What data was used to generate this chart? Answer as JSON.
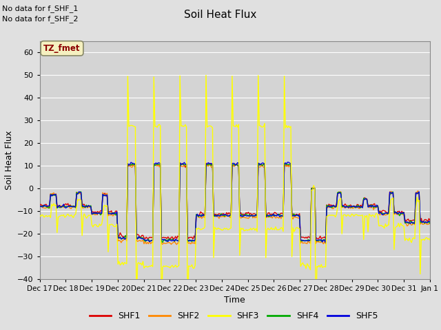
{
  "title": "Soil Heat Flux",
  "xlabel": "Time",
  "ylabel": "Soil Heat Flux",
  "ylim": [
    -40,
    65
  ],
  "yticks": [
    -40,
    -30,
    -20,
    -10,
    0,
    10,
    20,
    30,
    40,
    50,
    60
  ],
  "no_data_text_1": "No data for f_SHF_1",
  "no_data_text_2": "No data for f_SHF_2",
  "tz_label": "TZ_fmet",
  "legend_entries": [
    "SHF1",
    "SHF2",
    "SHF3",
    "SHF4",
    "SHF5"
  ],
  "line_colors": [
    "#dd0000",
    "#ff8800",
    "#ffff00",
    "#00aa00",
    "#0000dd"
  ],
  "background_color": "#e0e0e0",
  "plot_bg_color": "#d4d4d4",
  "grid_color": "#ffffff",
  "x_labels": [
    "Dec 17",
    "Dec 18",
    "Dec 19",
    "Dec 20",
    "Dec 21",
    "Dec 22",
    "Dec 23",
    "Dec 24",
    "Dec 25",
    "Dec 26",
    "Dec 27",
    "Dec 28",
    "Dec 29",
    "Dec 30",
    "Dec 31",
    "Jan 1"
  ]
}
